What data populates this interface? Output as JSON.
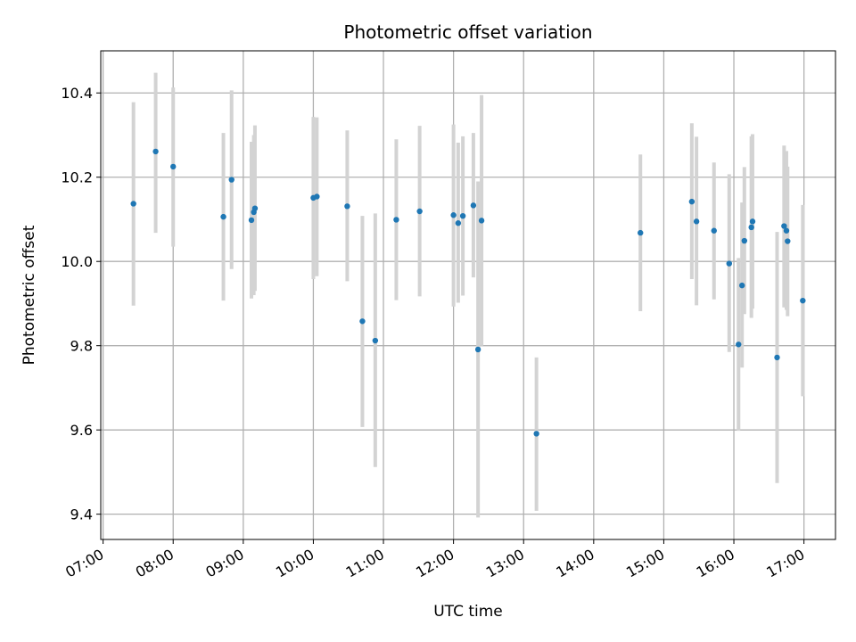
{
  "chart_data": {
    "type": "scatter",
    "title": "Photometric offset variation",
    "xlabel": "UTC time",
    "ylabel": "Photometric offset",
    "x_unit": "time of day (UTC)",
    "xlim": [
      "06:58",
      "17:27"
    ],
    "ylim": [
      9.34,
      10.5
    ],
    "x_ticks": [
      "07:00",
      "08:00",
      "09:00",
      "10:00",
      "11:00",
      "12:00",
      "13:00",
      "14:00",
      "15:00",
      "16:00",
      "17:00"
    ],
    "y_ticks": [
      "9.4",
      "9.6",
      "9.8",
      "10.0",
      "10.2",
      "10.4"
    ],
    "grid": true,
    "legend": "none",
    "colors": {
      "point": "#1f77b4",
      "errorbar": "#d3d3d3",
      "grid": "#b0b0b0"
    },
    "points": [
      {
        "x": "07:26",
        "y": 10.137,
        "lo": 9.895,
        "hi": 10.378
      },
      {
        "x": "07:45",
        "y": 10.261,
        "lo": 10.068,
        "hi": 10.448
      },
      {
        "x": "08:00",
        "y": 10.225,
        "lo": 10.035,
        "hi": 10.413
      },
      {
        "x": "08:43",
        "y": 10.106,
        "lo": 9.907,
        "hi": 10.305
      },
      {
        "x": "08:50",
        "y": 10.194,
        "lo": 9.982,
        "hi": 10.406
      },
      {
        "x": "09:07",
        "y": 10.098,
        "lo": 9.912,
        "hi": 10.284
      },
      {
        "x": "09:09",
        "y": 10.117,
        "lo": 9.92,
        "hi": 10.3
      },
      {
        "x": "09:10",
        "y": 10.126,
        "lo": 9.93,
        "hi": 10.323
      },
      {
        "x": "10:00",
        "y": 10.151,
        "lo": 9.958,
        "hi": 10.343
      },
      {
        "x": "10:03",
        "y": 10.154,
        "lo": 9.965,
        "hi": 10.342
      },
      {
        "x": "10:29",
        "y": 10.131,
        "lo": 9.953,
        "hi": 10.311
      },
      {
        "x": "10:42",
        "y": 9.858,
        "lo": 9.607,
        "hi": 10.108
      },
      {
        "x": "10:53",
        "y": 9.812,
        "lo": 9.512,
        "hi": 10.114
      },
      {
        "x": "11:11",
        "y": 10.099,
        "lo": 9.908,
        "hi": 10.29
      },
      {
        "x": "11:31",
        "y": 10.119,
        "lo": 9.917,
        "hi": 10.322
      },
      {
        "x": "12:00",
        "y": 10.11,
        "lo": 9.893,
        "hi": 10.325
      },
      {
        "x": "12:04",
        "y": 10.091,
        "lo": 9.902,
        "hi": 10.282
      },
      {
        "x": "12:08",
        "y": 10.108,
        "lo": 9.919,
        "hi": 10.297
      },
      {
        "x": "12:17",
        "y": 10.133,
        "lo": 9.962,
        "hi": 10.305
      },
      {
        "x": "12:21",
        "y": 9.791,
        "lo": 9.392,
        "hi": 10.19
      },
      {
        "x": "12:24",
        "y": 10.097,
        "lo": 9.8,
        "hi": 10.395
      },
      {
        "x": "13:11",
        "y": 9.591,
        "lo": 9.408,
        "hi": 9.772
      },
      {
        "x": "14:40",
        "y": 10.068,
        "lo": 9.882,
        "hi": 10.254
      },
      {
        "x": "15:24",
        "y": 10.142,
        "lo": 9.958,
        "hi": 10.328
      },
      {
        "x": "15:28",
        "y": 10.095,
        "lo": 9.896,
        "hi": 10.296
      },
      {
        "x": "15:43",
        "y": 10.073,
        "lo": 9.91,
        "hi": 10.235
      },
      {
        "x": "15:56",
        "y": 9.995,
        "lo": 9.785,
        "hi": 10.207
      },
      {
        "x": "16:04",
        "y": 9.803,
        "lo": 9.598,
        "hi": 10.008
      },
      {
        "x": "16:07",
        "y": 9.943,
        "lo": 9.748,
        "hi": 10.14
      },
      {
        "x": "16:09",
        "y": 10.049,
        "lo": 9.875,
        "hi": 10.224
      },
      {
        "x": "16:15",
        "y": 10.081,
        "lo": 9.866,
        "hi": 10.297
      },
      {
        "x": "16:16",
        "y": 10.095,
        "lo": 9.888,
        "hi": 10.302
      },
      {
        "x": "16:37",
        "y": 9.772,
        "lo": 9.474,
        "hi": 10.07
      },
      {
        "x": "16:43",
        "y": 10.084,
        "lo": 9.891,
        "hi": 10.275
      },
      {
        "x": "16:45",
        "y": 10.073,
        "lo": 9.885,
        "hi": 10.262
      },
      {
        "x": "16:46",
        "y": 10.048,
        "lo": 9.87,
        "hi": 10.225
      },
      {
        "x": "16:59",
        "y": 9.907,
        "lo": 9.68,
        "hi": 10.134
      }
    ]
  }
}
